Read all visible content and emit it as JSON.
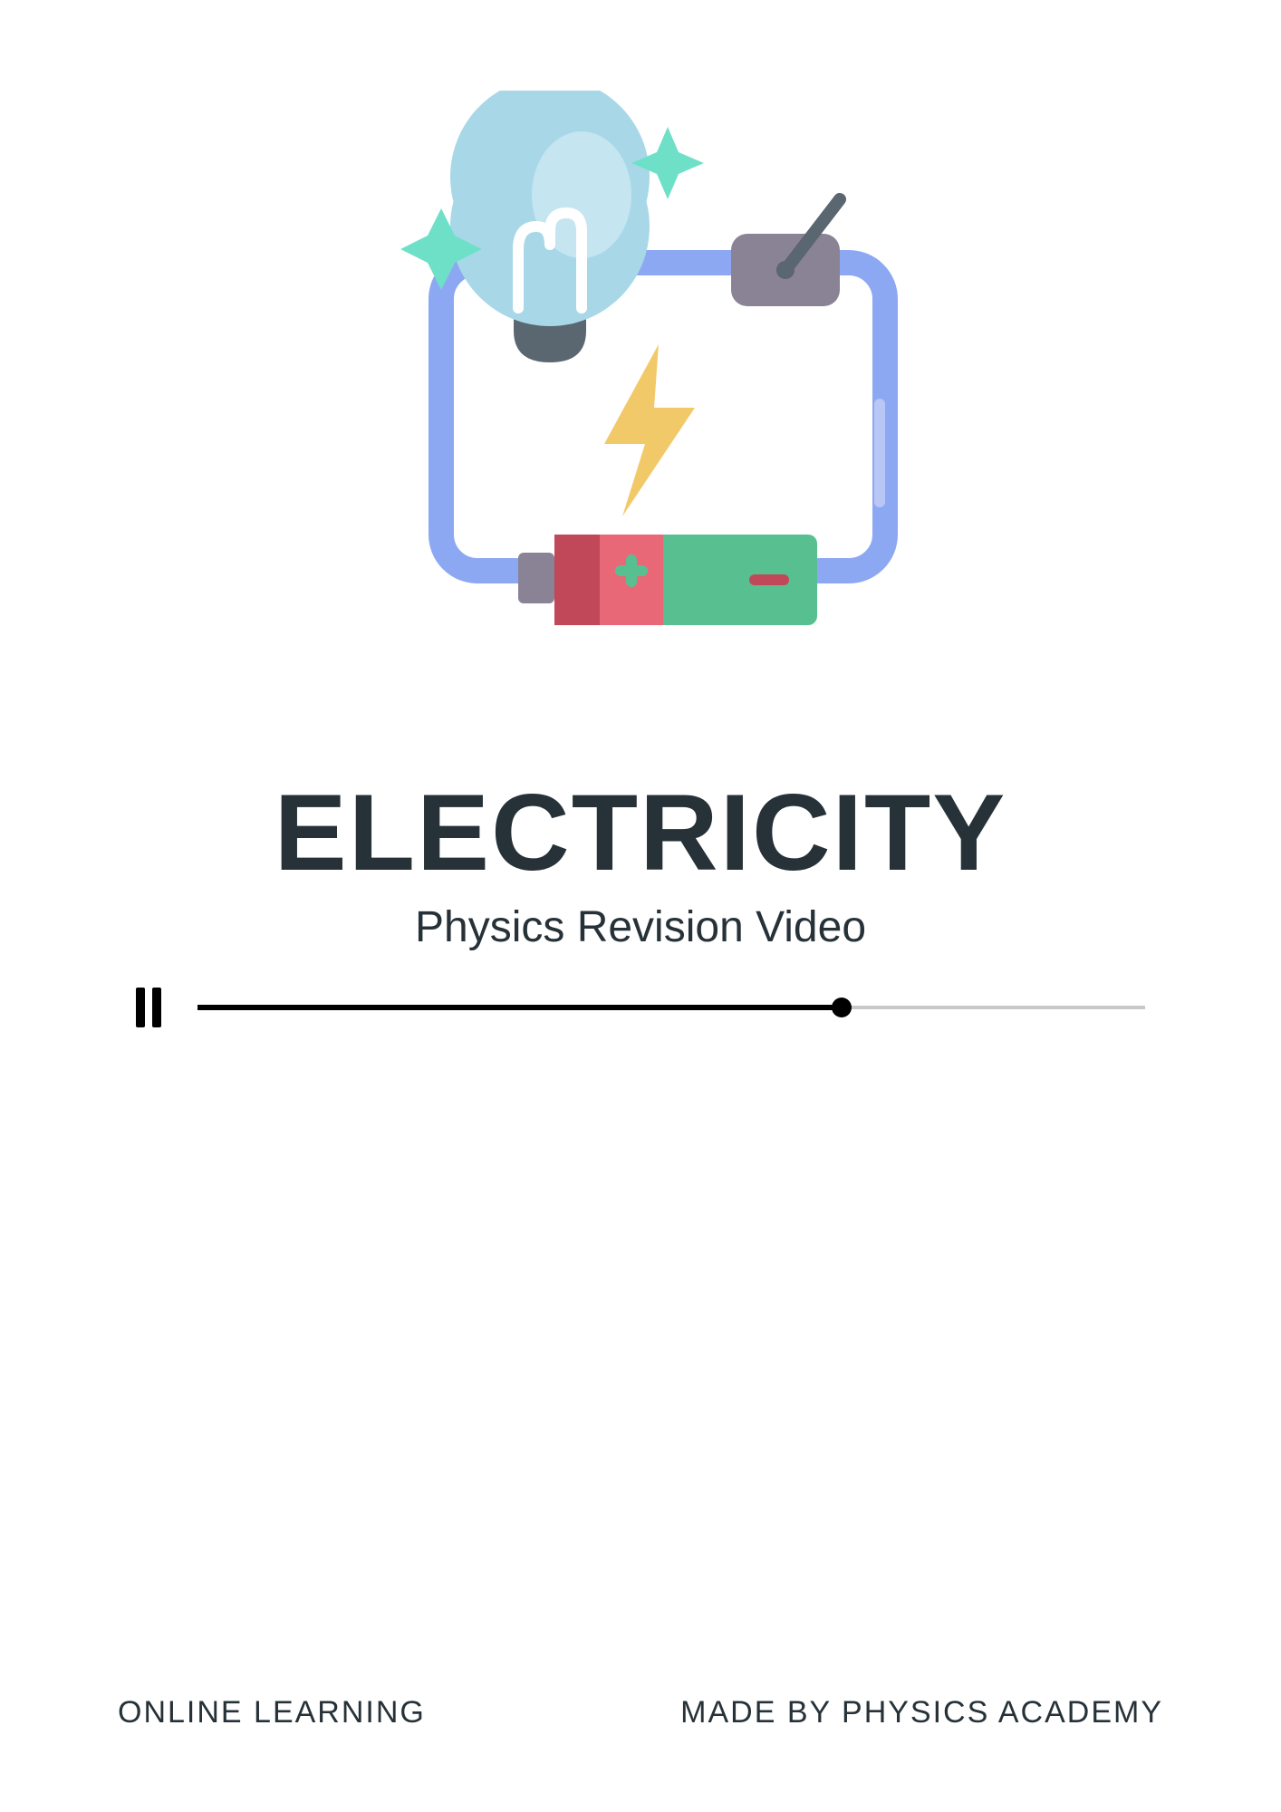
{
  "title": "ELECTRICITY",
  "subtitle": "Physics Revision Video",
  "player": {
    "progress_percent": 68
  },
  "footer": {
    "left": "ONLINE LEARNING",
    "right": "MADE BY PHYSICS ACADEMY"
  },
  "illustration": {
    "colors": {
      "circuit_wire": "#8da8f2",
      "circuit_wire_highlight": "#b8c7f5",
      "bulb_glass": "#a8d8e8",
      "bulb_glass_light": "#c5e5f0",
      "bulb_filament": "#ffffff",
      "bulb_base": "#5a6670",
      "sparkle": "#6fe0c8",
      "switch_box": "#8a8295",
      "switch_lever": "#5a6670",
      "bolt": "#f2c968",
      "bolt_shadow": "#a88b48",
      "battery_tip": "#8a8295",
      "battery_pos_dark": "#c04858",
      "battery_pos": "#e86878",
      "battery_neg": "#58c090",
      "battery_neg_dark": "#48a078",
      "plus_minus": "#ffffff"
    }
  }
}
